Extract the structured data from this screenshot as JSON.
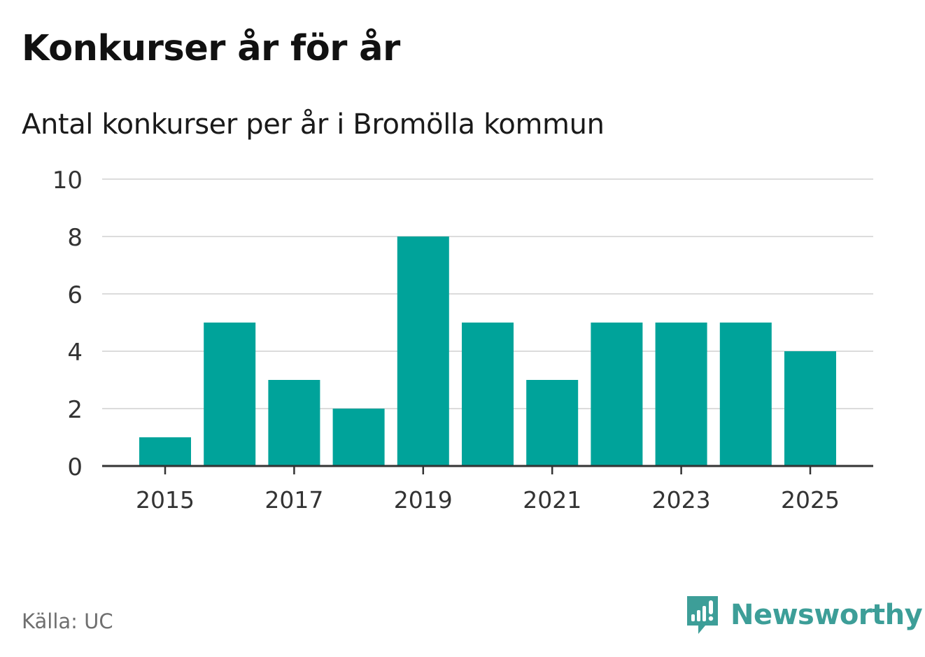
{
  "header": {
    "title": "Konkurser år för år",
    "subtitle": "Antal konkurser per år i Bromölla kommun"
  },
  "chart_data": {
    "type": "bar",
    "categories": [
      "2015",
      "2016",
      "2017",
      "2018",
      "2019",
      "2020",
      "2021",
      "2022",
      "2023",
      "2024",
      "2025"
    ],
    "values": [
      1,
      5,
      3,
      2,
      8,
      5,
      3,
      5,
      5,
      5,
      4
    ],
    "x_tick_labels": [
      "2015",
      "2017",
      "2019",
      "2021",
      "2023",
      "2025"
    ],
    "y_ticks": [
      0,
      2,
      4,
      6,
      8,
      10
    ],
    "ylim": [
      0,
      10
    ],
    "grid": true,
    "bar_color": "#00a39a",
    "title": "Konkurser år för år",
    "subtitle": "Antal konkurser per år i Bromölla kommun"
  },
  "footer": {
    "source": "Källa: UC",
    "brand": "Newsworthy",
    "brand_icon": "newsworthy-logo-icon",
    "brand_color": "#3d9e98"
  }
}
